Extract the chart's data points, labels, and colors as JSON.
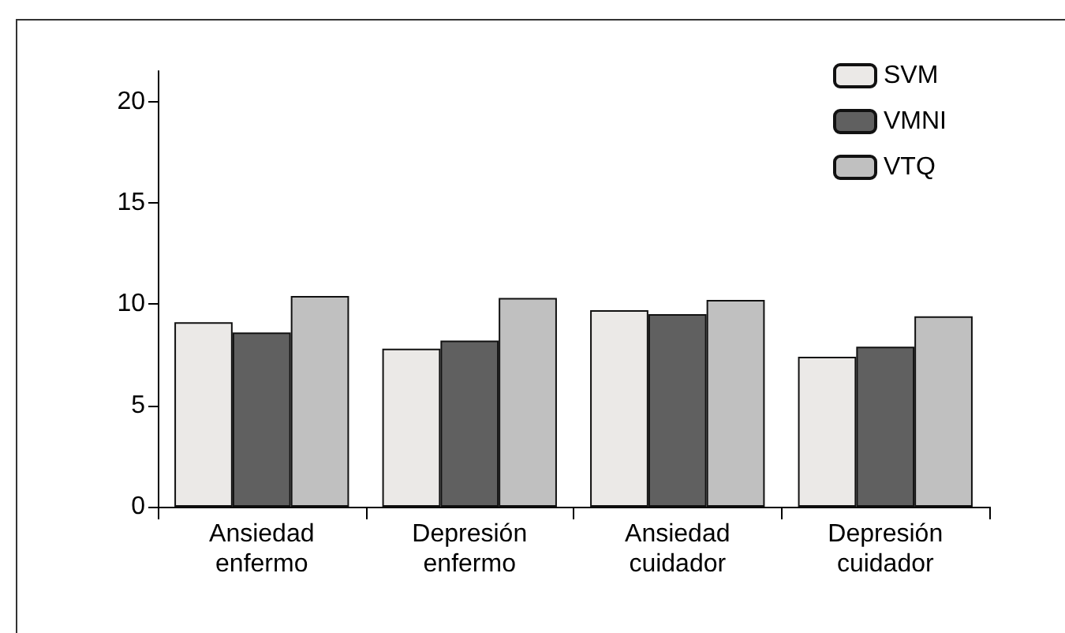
{
  "chart_data": {
    "type": "bar",
    "categories": [
      "Ansiedad\nenfermo",
      "Depresión\nenfermo",
      "Ansiedad\ncuidador",
      "Depresión\ncuidador"
    ],
    "series": [
      {
        "name": "SVM",
        "color": "#ebe9e7",
        "values": [
          9.1,
          7.8,
          9.7,
          7.4
        ]
      },
      {
        "name": "VMNI",
        "color": "#606060",
        "values": [
          8.6,
          8.2,
          9.5,
          7.9
        ]
      },
      {
        "name": "VTQ",
        "color": "#c0c0c0",
        "values": [
          10.4,
          10.3,
          10.2,
          9.4
        ]
      }
    ],
    "ylim": [
      0,
      21.5
    ],
    "yticks": [
      0,
      5,
      10,
      15,
      20
    ],
    "grid": false,
    "legend": "top right"
  }
}
